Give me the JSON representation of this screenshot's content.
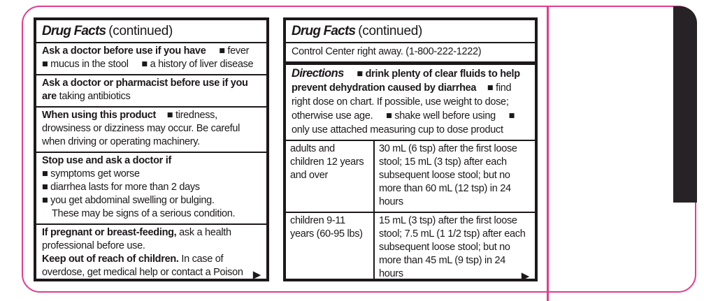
{
  "colors": {
    "outline_pink": "#e23d8b",
    "panel_border_black": "#1c181b",
    "side_tab_black": "#272226"
  },
  "left_panel": {
    "header": {
      "title": "Drug Facts",
      "continued": "(continued)"
    },
    "ask_doctor": {
      "lead": "Ask a doctor before use if you have",
      "bullets": [
        "■ fever",
        "■ mucus in the stool",
        "■ a history of liver disease"
      ]
    },
    "ask_pharmacist": {
      "lead": "Ask a doctor or pharmacist before use if you are",
      "rest": "taking antibiotics"
    },
    "when_using": {
      "lead": "When using this product",
      "bullet": "■ tiredness, drowsiness or dizziness may occur. Be careful when driving or operating machinery."
    },
    "stop_use": {
      "lead": "Stop use and ask a doctor if",
      "bullets": [
        "■ symptoms get worse",
        "■ diarrhea lasts for more than 2 days",
        "■ you get abdominal swelling or bulging."
      ],
      "note": "These may be signs of a serious condition."
    },
    "pregnancy": {
      "bold1": "If pregnant or breast-feeding,",
      "text1": "ask a health professional before use.",
      "bold2": "Keep out of reach of children.",
      "text2": "In case of overdose, get medical help or contact a Poison",
      "arrow": "▶"
    }
  },
  "right_panel": {
    "header": {
      "title": "Drug Facts",
      "continued": "(continued)"
    },
    "poison_line": "Control Center right away. (1-800-222-1222)",
    "directions": {
      "title": "Directions",
      "bold_bullet": "■ drink plenty of clear fluids to help prevent dehydration caused by diarrhea",
      "bullets": [
        "■ find right dose on chart. If possible, use weight to dose; otherwise use age.",
        "■ shake well before using",
        "■ only use attached measuring cup to dose product"
      ]
    },
    "dosage_table": {
      "rows": [
        {
          "age": "adults and children 12 years and over",
          "dose": "30 mL (6 tsp) after the first loose stool; 15 mL (3 tsp) after each subsequent loose stool; but no more than 60 mL (12 tsp) in 24 hours"
        },
        {
          "age": "children 9-11 years (60-95 lbs)",
          "dose": "15 mL (3 tsp) after the first loose stool; 7.5 mL (1 1/2 tsp) after each subsequent loose stool; but no more than 45 mL (9 tsp) in 24 hours",
          "arrow": "▶"
        }
      ]
    }
  }
}
